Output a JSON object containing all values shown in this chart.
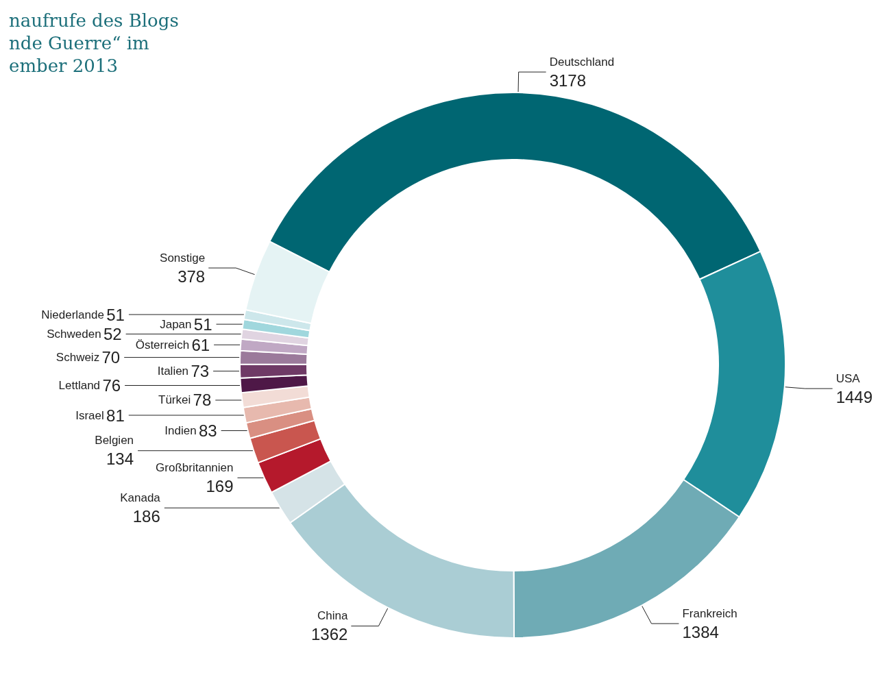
{
  "chart_data": {
    "type": "donut",
    "title": "naufrufe des Blogs\nnde Guerre“ im\nember 2013",
    "categories": [
      "Deutschland",
      "USA",
      "Frankreich",
      "China",
      "Kanada",
      "Großbritannien",
      "Belgien",
      "Indien",
      "Israel",
      "Türkei",
      "Lettland",
      "Italien",
      "Schweiz",
      "Österreich",
      "Schweden",
      "Japan",
      "Niederlande",
      "Sonstige"
    ],
    "values": [
      3178,
      1449,
      1384,
      1362,
      186,
      169,
      134,
      83,
      81,
      78,
      76,
      73,
      70,
      61,
      52,
      51,
      51,
      378
    ],
    "colors": [
      "#006672",
      "#1f8e9b",
      "#6fabb5",
      "#aacdd4",
      "#d5e3e7",
      "#b5192c",
      "#c9564f",
      "#d98f82",
      "#e7b9ae",
      "#f2dcd6",
      "#4e1847",
      "#6f3a66",
      "#9b7a9b",
      "#c0a8c4",
      "#e0d4e1",
      "#a0d7dd",
      "#cde7eb",
      "#e5f3f4"
    ],
    "data_labels": true,
    "legend": false
  }
}
